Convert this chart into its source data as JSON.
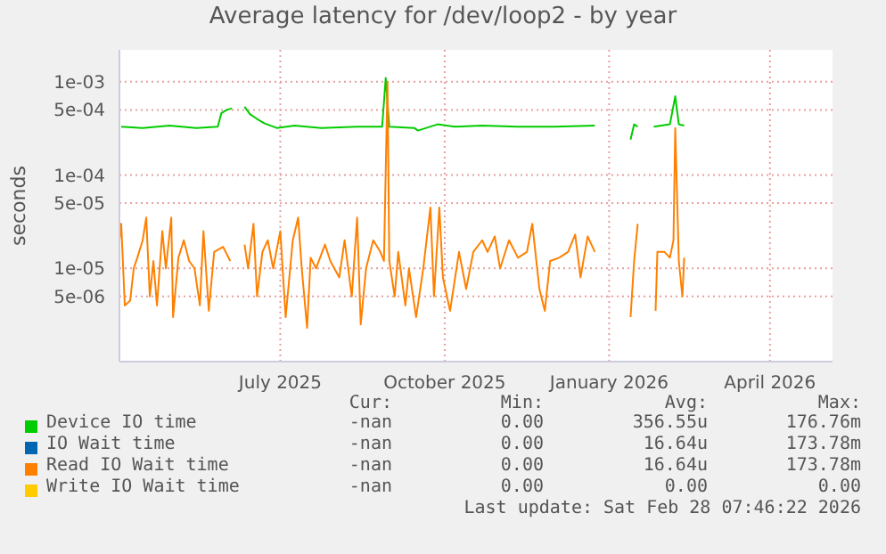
{
  "chart_data": {
    "type": "line",
    "title": "Average latency for /dev/loop2 - by year",
    "ylabel": "seconds",
    "log": "y",
    "grid": true,
    "legend": "bottom",
    "marker": "none",
    "line_style": "solid",
    "xlim": [
      "2025-04-18",
      "2026-05-22"
    ],
    "xticks": [
      {
        "value": "2025-07-17",
        "label": "July 2025"
      },
      {
        "value": "2025-10-17",
        "label": "October 2025"
      },
      {
        "value": "2026-01-17",
        "label": "January 2026"
      },
      {
        "value": "2026-04-17",
        "label": "April 2026"
      }
    ],
    "ylim": [
      1e-06,
      0.0022
    ],
    "yticks": [
      {
        "value": 5e-06,
        "label": "5e-06"
      },
      {
        "value": 1e-05,
        "label": "1e-05"
      },
      {
        "value": 5e-05,
        "label": "5e-05"
      },
      {
        "value": 0.0001,
        "label": "1e-04"
      },
      {
        "value": 0.0005,
        "label": "5e-04"
      },
      {
        "value": 0.001,
        "label": "1e-03"
      }
    ],
    "series": [
      {
        "name": "Device IO time",
        "color": "#00cc00",
        "x": [
          "2025-04-19",
          "2025-05-01",
          "2025-05-16",
          "2025-05-31",
          "2025-06-12",
          "2025-06-14",
          "2025-06-17",
          "2025-06-20",
          "2025-06-23",
          "2025-06-27",
          "2025-06-30",
          "2025-07-04",
          "2025-07-08",
          "2025-07-15",
          "2025-07-25",
          "2025-08-09",
          "2025-08-29",
          "2025-09-12",
          "2025-09-14",
          "2025-09-16",
          "2025-09-30",
          "2025-10-02",
          "2025-10-13",
          "2025-10-23",
          "2025-11-07",
          "2025-11-27",
          "2025-12-17",
          "2026-01-09",
          "2026-01-19",
          "2026-01-29",
          "2026-01-31",
          "2026-02-02",
          "2026-02-07",
          "2026-02-11",
          "2026-02-20",
          "2026-02-23",
          "2026-02-25",
          "2026-02-28"
        ],
        "values": [
          0.00033,
          0.00032,
          0.00034,
          0.00032,
          0.00033,
          0.00046,
          0.0005,
          0.00052,
          null,
          0.00054,
          0.00045,
          0.0004,
          0.00036,
          0.00032,
          0.00034,
          0.00032,
          0.00033,
          0.00033,
          0.0011,
          0.00033,
          0.00032,
          0.0003,
          0.00035,
          0.00033,
          0.00034,
          0.00033,
          0.00033,
          0.00034,
          null,
          0.00024,
          0.00035,
          0.00033,
          null,
          0.00033,
          0.00035,
          0.0007,
          0.00035,
          0.00034
        ]
      },
      {
        "name": "IO Wait time",
        "color": "#0066b3"
      },
      {
        "name": "Read IO Wait time",
        "color": "#ff8000",
        "x": [
          "2025-04-18",
          "2025-04-19",
          "2025-04-21",
          "2025-04-24",
          "2025-04-26",
          "2025-04-28",
          "2025-05-01",
          "2025-05-03",
          "2025-05-05",
          "2025-05-07",
          "2025-05-09",
          "2025-05-12",
          "2025-05-14",
          "2025-05-17",
          "2025-05-18",
          "2025-05-21",
          "2025-05-24",
          "2025-05-27",
          "2025-05-30",
          "2025-06-02",
          "2025-06-04",
          "2025-06-07",
          "2025-06-10",
          "2025-06-15",
          "2025-06-19",
          "2025-06-23",
          "2025-06-27",
          "2025-06-29",
          "2025-07-02",
          "2025-07-04",
          "2025-07-07",
          "2025-07-10",
          "2025-07-13",
          "2025-07-17",
          "2025-07-20",
          "2025-07-24",
          "2025-07-27",
          "2025-07-29",
          "2025-08-01",
          "2025-08-03",
          "2025-08-06",
          "2025-08-11",
          "2025-08-14",
          "2025-08-19",
          "2025-08-22",
          "2025-08-26",
          "2025-08-29",
          "2025-08-31",
          "2025-09-03",
          "2025-09-07",
          "2025-09-11",
          "2025-09-13",
          "2025-09-15",
          "2025-09-16",
          "2025-09-19",
          "2025-09-21",
          "2025-09-25",
          "2025-09-27",
          "2025-10-01",
          "2025-10-05",
          "2025-10-09",
          "2025-10-11",
          "2025-10-14",
          "2025-10-16",
          "2025-10-20",
          "2025-10-25",
          "2025-10-29",
          "2025-11-02",
          "2025-11-07",
          "2025-11-10",
          "2025-11-14",
          "2025-11-17",
          "2025-11-22",
          "2025-11-27",
          "2025-12-02",
          "2025-12-05",
          "2025-12-09",
          "2025-12-12",
          "2025-12-15",
          "2025-12-20",
          "2025-12-25",
          "2025-12-29",
          "2026-01-01",
          "2026-01-05",
          "2026-01-09",
          "2026-01-19",
          "2026-01-29",
          "2026-01-31",
          "2026-02-02",
          "2026-02-07",
          "2026-02-12",
          "2026-02-13",
          "2026-02-17",
          "2026-02-20",
          "2026-02-22",
          "2026-02-23",
          "2026-02-25",
          "2026-02-27",
          "2026-02-28"
        ],
        "values": [
          2e-05,
          3e-05,
          4e-06,
          4.5e-06,
          1e-05,
          1.3e-05,
          2e-05,
          3.5e-05,
          5e-06,
          1.2e-05,
          4e-06,
          2.5e-05,
          1e-05,
          3.5e-05,
          3e-06,
          1.3e-05,
          2e-05,
          1.2e-05,
          1e-05,
          4e-06,
          2.5e-05,
          3.5e-06,
          1.5e-05,
          1.7e-05,
          1.2e-05,
          null,
          1.8e-05,
          1e-05,
          3e-05,
          5e-06,
          1.5e-05,
          2e-05,
          1e-05,
          2.5e-05,
          3e-06,
          2e-05,
          3.5e-05,
          1e-05,
          2.3e-06,
          1.3e-05,
          1e-05,
          1.8e-05,
          1.2e-05,
          8e-06,
          2e-05,
          5e-06,
          3.5e-05,
          2.5e-06,
          1e-05,
          2e-05,
          1.5e-05,
          1.2e-05,
          0.001,
          1.2e-05,
          5e-06,
          1.5e-05,
          4e-06,
          1e-05,
          3e-06,
          1e-05,
          4.5e-05,
          5e-06,
          4.5e-05,
          8e-06,
          3.5e-06,
          1.5e-05,
          6e-06,
          1.5e-05,
          2e-05,
          1.5e-05,
          2.2e-05,
          1e-05,
          2e-05,
          1.3e-05,
          1.5e-05,
          3e-05,
          6e-06,
          3.5e-06,
          1.2e-05,
          1.3e-05,
          1.5e-05,
          2.3e-05,
          8e-06,
          2.2e-05,
          1.5e-05,
          null,
          3e-06,
          1.2e-05,
          3e-05,
          null,
          3.5e-06,
          1.5e-05,
          1.5e-05,
          1.3e-05,
          2e-05,
          0.00032,
          1.2e-05,
          5e-06,
          1.3e-05
        ]
      },
      {
        "name": "Write IO Wait time",
        "color": "#ffcc00"
      }
    ],
    "annotations": [
      "Cur:",
      "Min:",
      "Avg:",
      "Max:",
      "-nan",
      "0.00",
      "356.55u",
      "176.76m",
      "-nan",
      "0.00",
      "16.64u",
      "173.78m",
      "-nan",
      "0.00",
      "16.64u",
      "173.78m",
      "-nan",
      "0.00",
      "0.00",
      "0.00",
      "Last update: Sat Feb 28 07:46:22 2026"
    ]
  }
}
